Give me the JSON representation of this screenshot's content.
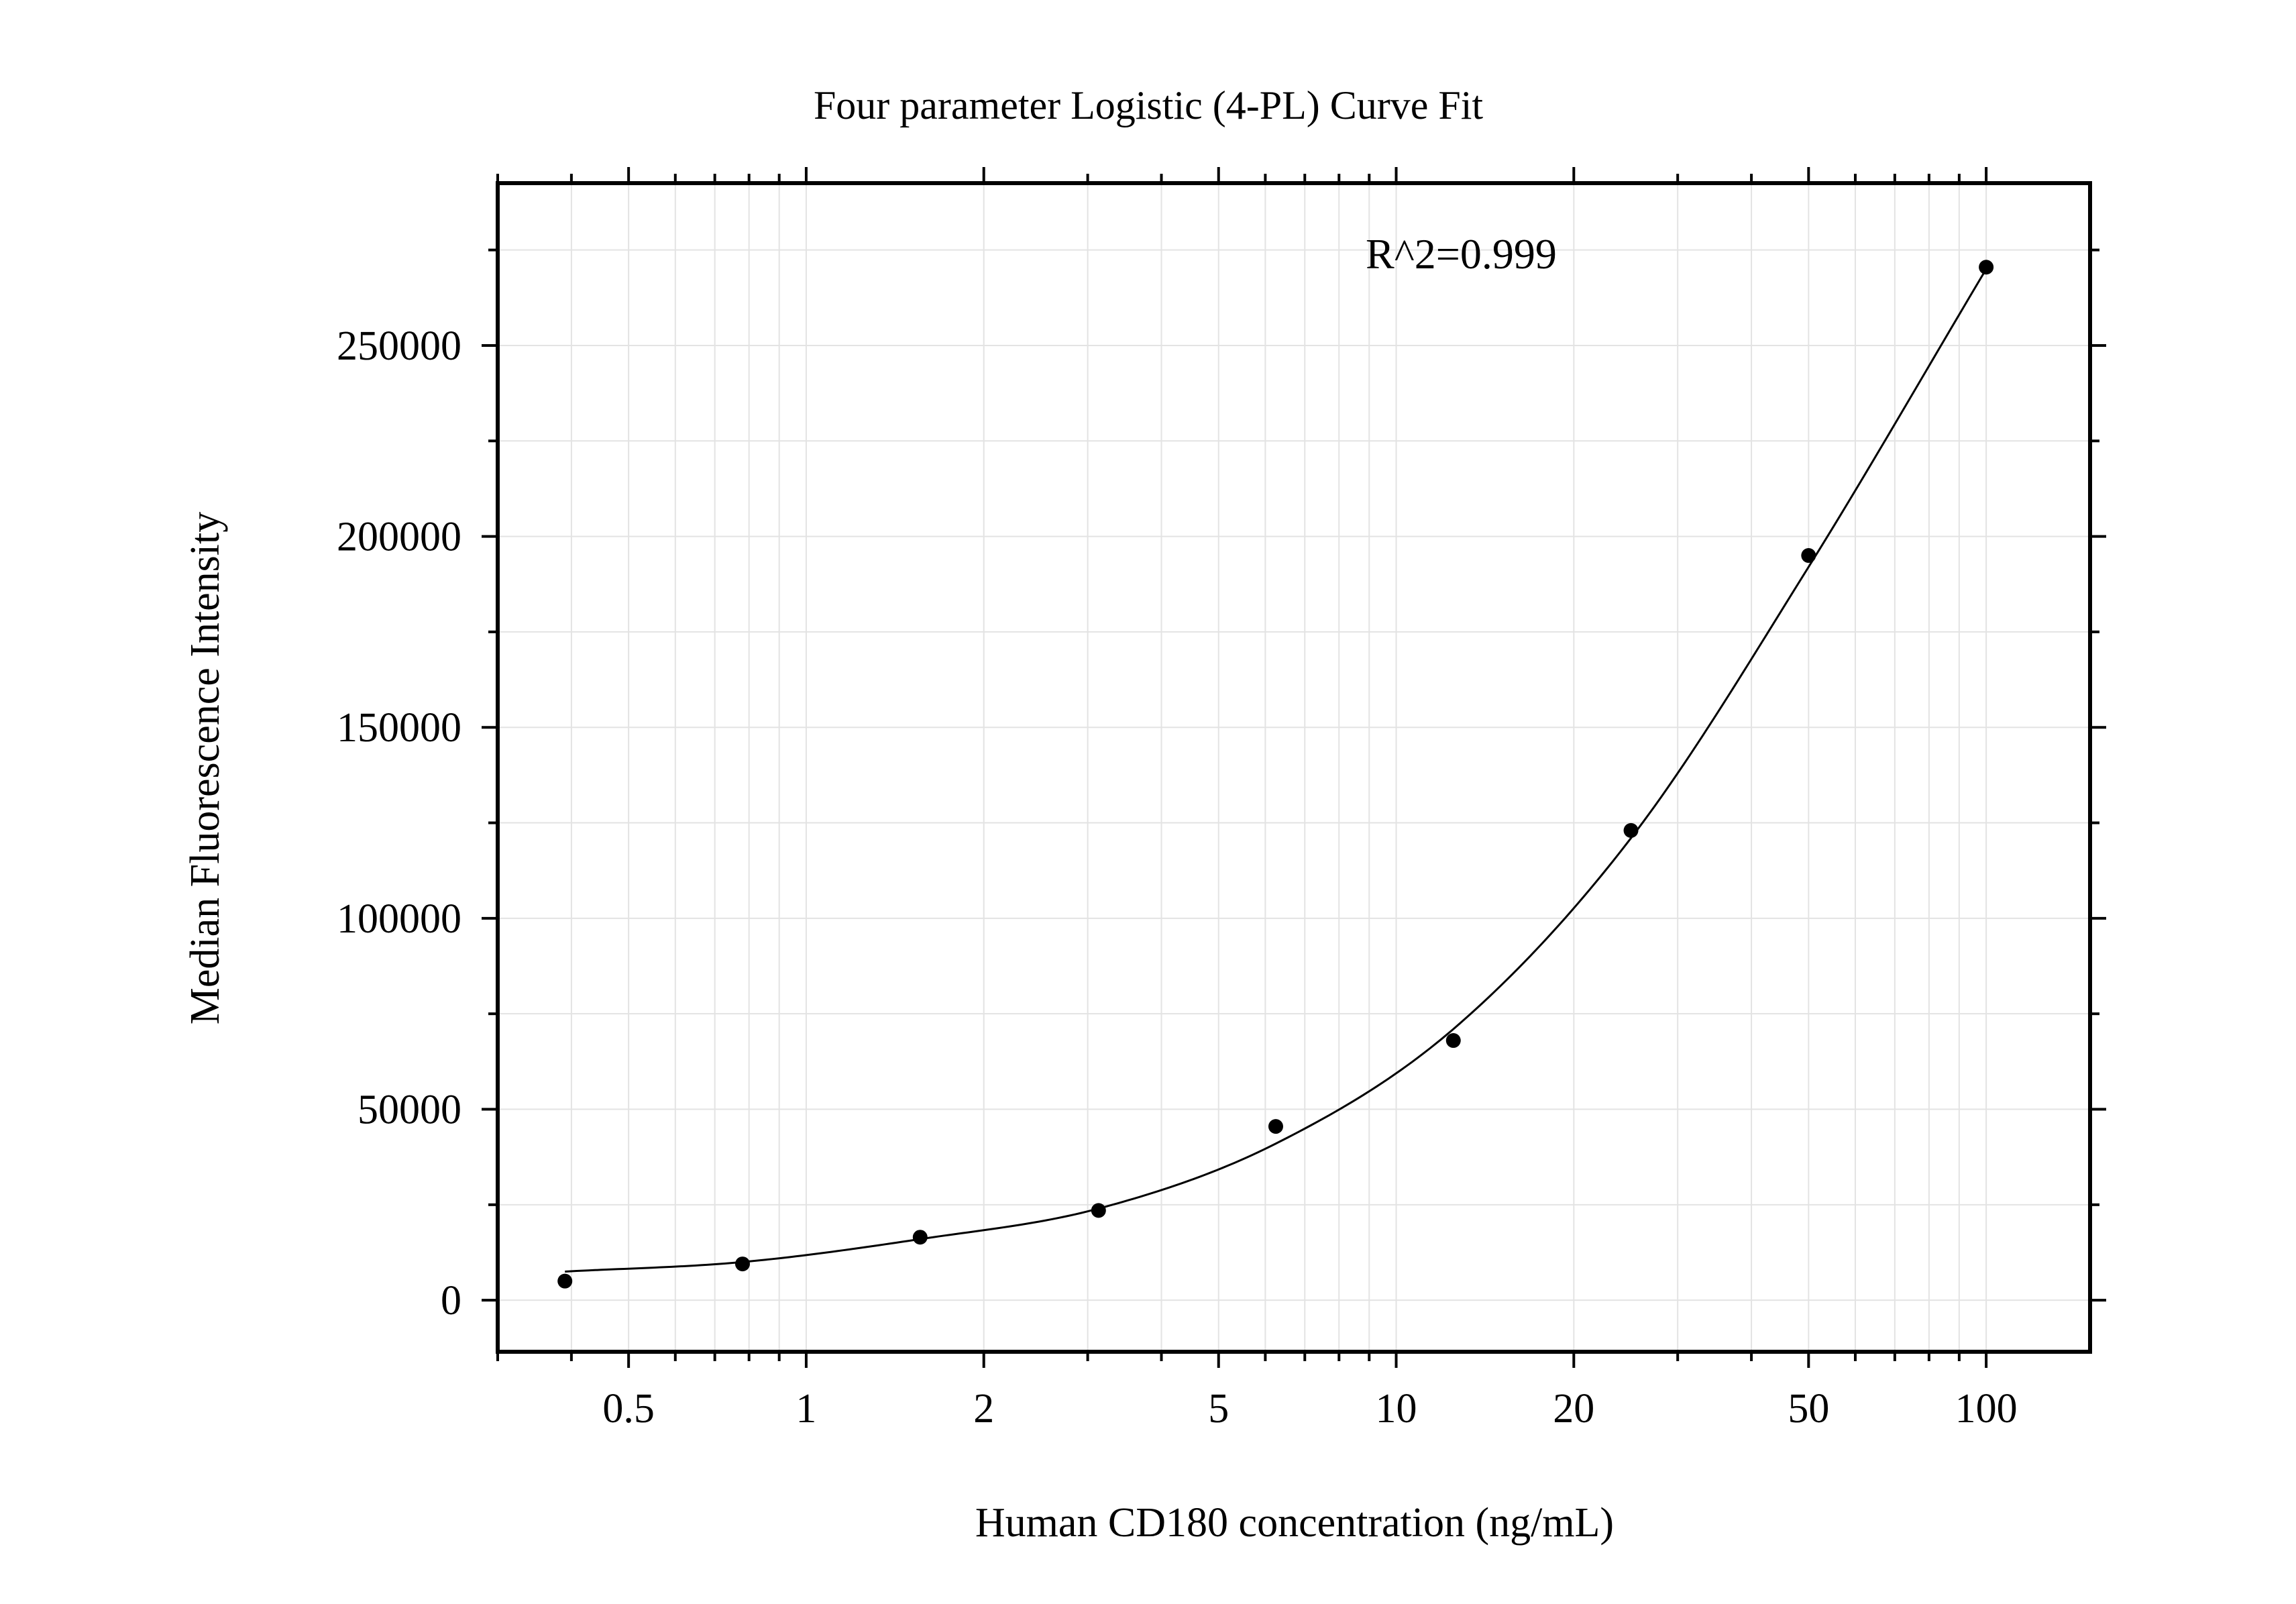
{
  "chart_data": {
    "type": "scatter",
    "title": "Four parameter Logistic (4-PL) Curve Fit",
    "xlabel": "Human CD180 concentration (ng/mL)",
    "ylabel": "Median Fluorescence Intensity",
    "annotation": "R^2=0.999",
    "x_scale": "log",
    "xlim": [
      0.3,
      150
    ],
    "ylim": [
      -13500,
      292500
    ],
    "x_ticks": [
      0.5,
      1,
      2,
      5,
      10,
      20,
      50,
      100
    ],
    "x_tick_labels": [
      "0.5",
      "1",
      "2",
      "5",
      "10",
      "20",
      "50",
      "100"
    ],
    "y_ticks": [
      0,
      50000,
      100000,
      150000,
      200000,
      250000
    ],
    "y_tick_labels": [
      "0",
      "50000",
      "100000",
      "150000",
      "200000",
      "250000"
    ],
    "grid": true,
    "series": [
      {
        "x": [
          0.39,
          0.78,
          1.56,
          3.13,
          6.25,
          12.5,
          25,
          50,
          100
        ],
        "y": [
          5000,
          9500,
          16500,
          23500,
          45500,
          68000,
          123000,
          195000,
          270500
        ]
      }
    ],
    "fit_curve": {
      "x": [
        0.39,
        0.78,
        1.56,
        3.13,
        6.25,
        12.5,
        25,
        50,
        100
      ],
      "y": [
        7500,
        10000,
        16000,
        24000,
        41000,
        71000,
        121000,
        192000,
        270000
      ]
    },
    "colors": {
      "points": "#000000",
      "curve": "#000000",
      "grid": "#e3e3e3",
      "axes": "#000000"
    }
  }
}
